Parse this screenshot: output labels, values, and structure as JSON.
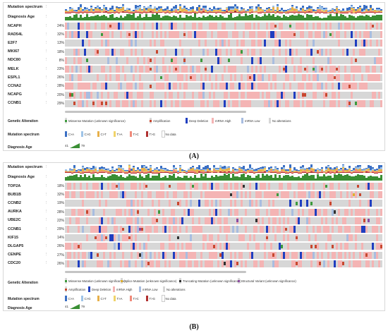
{
  "panels": [
    {
      "id": "A",
      "caption": "(A)",
      "tracks": {
        "mutation_spectrum": "Mutation spectrum",
        "diagnosis_age": "Diagnosis Age"
      },
      "genes": [
        {
          "name": "NCAPH",
          "pct": "24%"
        },
        {
          "name": "RAD54L",
          "pct": "32%"
        },
        {
          "name": "E2F7",
          "pct": "13%"
        },
        {
          "name": "MKI67",
          "pct": "18%"
        },
        {
          "name": "NDC80",
          "pct": "8%"
        },
        {
          "name": "MELK",
          "pct": "23%"
        },
        {
          "name": "ESPL1",
          "pct": "26%"
        },
        {
          "name": "CCNA2",
          "pct": "28%"
        },
        {
          "name": "NCAPG",
          "pct": "20%"
        },
        {
          "name": "CCNB1",
          "pct": "29%"
        }
      ],
      "legend": {
        "genetic_alteration_title": "Genetic Alteration",
        "alterations": [
          {
            "label": "Missense Mutation (unknown significance)",
            "kind": "mis"
          },
          {
            "label": "Amplification",
            "kind": "amp"
          },
          {
            "label": "Deep Deletion",
            "kind": "del"
          },
          {
            "label": "mRNA High",
            "kind": "high"
          },
          {
            "label": "mRNA Low",
            "kind": "low"
          },
          {
            "label": "No alterations",
            "kind": "none"
          }
        ],
        "mutation_spectrum_title": "Mutation spectrum",
        "spectrum": [
          {
            "label": "C>A",
            "color": "#3a6fc4"
          },
          {
            "label": "C>G",
            "color": "#9fc4e8"
          },
          {
            "label": "C>T",
            "color": "#e7b04a"
          },
          {
            "label": "T>A",
            "color": "#f0d36a"
          },
          {
            "label": "T>C",
            "color": "#f08a7a"
          },
          {
            "label": "T>G",
            "color": "#b03030"
          },
          {
            "label": "No data",
            "color": "#ffffff"
          }
        ],
        "diagnosis_age_title": "Diagnosis Age",
        "age_min": "41",
        "age_max": "79"
      }
    },
    {
      "id": "B",
      "caption": "(B)",
      "tracks": {
        "mutation_spectrum": "Mutation spectrum",
        "diagnosis_age": "Diagnosis Age"
      },
      "genes": [
        {
          "name": "TOP2A",
          "pct": "18%"
        },
        {
          "name": "BUB1B",
          "pct": "32%"
        },
        {
          "name": "CCNB2",
          "pct": "19%"
        },
        {
          "name": "AURKA",
          "pct": "28%"
        },
        {
          "name": "UBE2C",
          "pct": "22%"
        },
        {
          "name": "CCNB1",
          "pct": "29%"
        },
        {
          "name": "KIF15",
          "pct": "14%"
        },
        {
          "name": "DLGAP5",
          "pct": "26%"
        },
        {
          "name": "CENPE",
          "pct": "27%"
        },
        {
          "name": "CDC20",
          "pct": "26%"
        }
      ],
      "legend": {
        "genetic_alteration_title": "Genetic Alteration",
        "alterations": [
          {
            "label": "Missense Mutation (unknown significance)",
            "kind": "mis"
          },
          {
            "label": "Splice Mutation (unknown significance)",
            "kind": "splice"
          },
          {
            "label": "Truncating Mutation (unknown significance)",
            "kind": "trunc"
          },
          {
            "label": "Structural Variant (unknown significance)",
            "kind": "struct"
          },
          {
            "label": "Amplification",
            "kind": "amp"
          },
          {
            "label": "Deep Deletion",
            "kind": "del"
          },
          {
            "label": "mRNA High",
            "kind": "high"
          },
          {
            "label": "mRNA Low",
            "kind": "low"
          },
          {
            "label": "No alterations",
            "kind": "none"
          }
        ],
        "mutation_spectrum_title": "Mutation spectrum",
        "spectrum": [
          {
            "label": "C>A",
            "color": "#3a6fc4"
          },
          {
            "label": "C>G",
            "color": "#9fc4e8"
          },
          {
            "label": "C>T",
            "color": "#e7b04a"
          },
          {
            "label": "T>A",
            "color": "#f0d36a"
          },
          {
            "label": "T>C",
            "color": "#f08a7a"
          },
          {
            "label": "T>G",
            "color": "#b03030"
          },
          {
            "label": "No data",
            "color": "#ffffff"
          }
        ],
        "diagnosis_age_title": "Diagnosis Age",
        "age_min": "41",
        "age_max": "79"
      }
    }
  ],
  "colors": {
    "no_alteration": "#d7d7d7",
    "mrna_high": "#f4b4b4",
    "mrna_low": "#a8bde0",
    "amplification": "#c8472f",
    "deep_deletion": "#1f3ec0",
    "missense": "#3c9a3c",
    "diagnosis_age": "#3a8f34"
  }
}
